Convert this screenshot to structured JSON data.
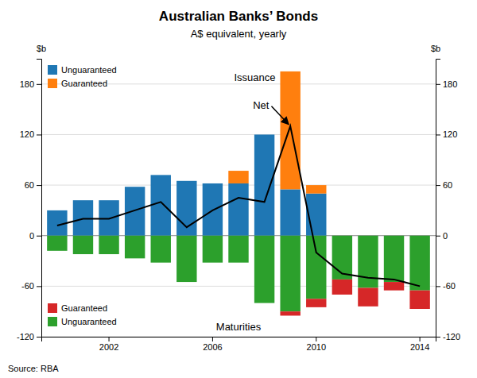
{
  "chart_data": {
    "type": "bar",
    "title": "Australian Banks’ Bonds",
    "subtitle": "A$ equivalent, yearly",
    "source": "Source: RBA",
    "ylabel": "$b",
    "y2label": "$b",
    "categories": [
      null,
      null,
      "2002",
      null,
      null,
      null,
      "2006",
      null,
      null,
      null,
      "2010",
      null,
      null,
      null,
      "2014"
    ],
    "stacked": true,
    "series": [
      {
        "name": "Unguaranteed",
        "type": "bar",
        "values": [
          30,
          42,
          42,
          58,
          72,
          65,
          62,
          62,
          120,
          55,
          50,
          0,
          0,
          0,
          0
        ]
      },
      {
        "name": "Guaranteed",
        "type": "bar",
        "values": [
          0,
          0,
          0,
          0,
          0,
          0,
          0,
          15,
          0,
          140,
          10,
          0,
          0,
          0,
          0
        ]
      },
      {
        "name": "Unguaranteed",
        "type": "bar",
        "values": [
          -18,
          -22,
          -22,
          -27,
          -32,
          -55,
          -32,
          -32,
          -80,
          -90,
          -75,
          -52,
          -62,
          -55,
          -65
        ]
      },
      {
        "name": "Guaranteed",
        "type": "bar",
        "values": [
          0,
          0,
          0,
          0,
          0,
          0,
          0,
          0,
          0,
          -5,
          -10,
          -18,
          -22,
          -10,
          -22
        ]
      },
      {
        "type": "line",
        "color": "#000000",
        "values": [
          12,
          20,
          20,
          30,
          40,
          10,
          30,
          45,
          40,
          130,
          -20,
          -45,
          -50,
          -52,
          -60
        ]
      }
    ],
    "ylim": [
      -120,
      210
    ],
    "yticks": [
      -120,
      -60,
      0,
      60,
      120,
      180
    ],
    "y2lim": [
      -120,
      210
    ],
    "y2ticks": [
      -120,
      -60,
      0,
      60,
      120,
      180
    ],
    "grid": true,
    "legend": "upper left",
    "annotations": [
      "Issuance",
      "Net",
      "Maturities"
    ]
  }
}
